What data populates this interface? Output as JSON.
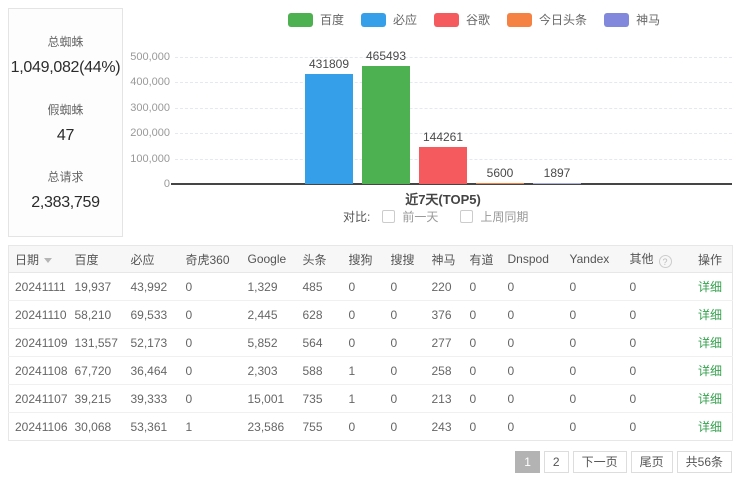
{
  "stats": {
    "items": [
      {
        "label": "总蜘蛛",
        "value": "1,049,082(44%)"
      },
      {
        "label": "假蜘蛛",
        "value": "47"
      },
      {
        "label": "总请求",
        "value": "2,383,759"
      }
    ]
  },
  "chart_data": {
    "type": "bar",
    "xlabel": "近7天(TOP5)",
    "ylim": [
      0,
      500000
    ],
    "yticks": [
      "500,000",
      "400,000",
      "300,000",
      "200,000",
      "100,000",
      "0"
    ],
    "grid": true,
    "legend_position": "top",
    "legend": [
      {
        "label": "百度",
        "color": "#4db151"
      },
      {
        "label": "必应",
        "color": "#35a0e9"
      },
      {
        "label": "谷歌",
        "color": "#f55a5e"
      },
      {
        "label": "今日头条",
        "color": "#f58143"
      },
      {
        "label": "神马",
        "color": "#8289dd"
      }
    ],
    "bars": [
      {
        "name": "必应",
        "value": 431809,
        "color": "#35a0e9"
      },
      {
        "name": "百度",
        "value": 465493,
        "color": "#4db151"
      },
      {
        "name": "谷歌",
        "value": 144261,
        "color": "#f55a5e"
      },
      {
        "name": "今日头条",
        "value": 5600,
        "color": "#f58143"
      },
      {
        "name": "神马",
        "value": 1897,
        "color": "#aab1e0"
      }
    ]
  },
  "compare": {
    "label": "对比:",
    "options": [
      {
        "label": "前一天",
        "checked": false
      },
      {
        "label": "上周同期",
        "checked": false
      }
    ]
  },
  "table": {
    "columns": [
      "日期",
      "百度",
      "必应",
      "奇虎360",
      "Google",
      "头条",
      "搜狗",
      "搜搜",
      "神马",
      "有道",
      "Dnspod",
      "Yandex",
      "其他",
      "操作"
    ],
    "sort_column": "日期",
    "help_column": "其他",
    "detail_label": "详细",
    "rows": [
      [
        "20241111",
        "19,937",
        "43,992",
        "0",
        "1,329",
        "485",
        "0",
        "0",
        "220",
        "0",
        "0",
        "0",
        "0"
      ],
      [
        "20241110",
        "58,210",
        "69,533",
        "0",
        "2,445",
        "628",
        "0",
        "0",
        "376",
        "0",
        "0",
        "0",
        "0"
      ],
      [
        "20241109",
        "131,557",
        "52,173",
        "0",
        "5,852",
        "564",
        "0",
        "0",
        "277",
        "0",
        "0",
        "0",
        "0"
      ],
      [
        "20241108",
        "67,720",
        "36,464",
        "0",
        "2,303",
        "588",
        "1",
        "0",
        "258",
        "0",
        "0",
        "0",
        "0"
      ],
      [
        "20241107",
        "39,215",
        "39,333",
        "0",
        "15,001",
        "735",
        "1",
        "0",
        "213",
        "0",
        "0",
        "0",
        "0"
      ],
      [
        "20241106",
        "30,068",
        "53,361",
        "1",
        "23,586",
        "755",
        "0",
        "0",
        "243",
        "0",
        "0",
        "0",
        "0"
      ]
    ]
  },
  "pagination": {
    "items": [
      {
        "label": "1",
        "type": "page",
        "active": true
      },
      {
        "label": "2",
        "type": "page",
        "active": false
      },
      {
        "label": "下一页",
        "type": "next",
        "active": false
      },
      {
        "label": "尾页",
        "type": "last",
        "active": false
      },
      {
        "label": "共56条",
        "type": "info",
        "active": false
      }
    ]
  }
}
